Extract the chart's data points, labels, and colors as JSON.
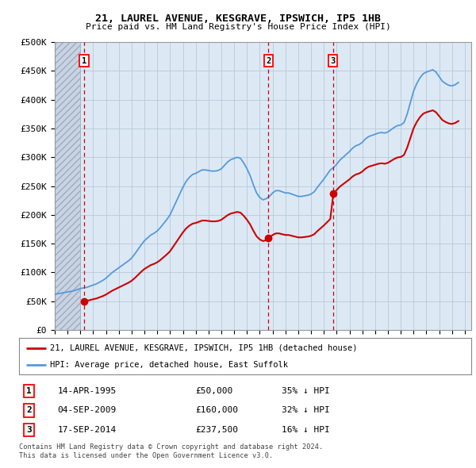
{
  "title1": "21, LAUREL AVENUE, KESGRAVE, IPSWICH, IP5 1HB",
  "title2": "Price paid vs. HM Land Registry's House Price Index (HPI)",
  "ylim": [
    0,
    500000
  ],
  "yticks": [
    0,
    50000,
    100000,
    150000,
    200000,
    250000,
    300000,
    350000,
    400000,
    450000,
    500000
  ],
  "ytick_labels": [
    "£0",
    "£50K",
    "£100K",
    "£150K",
    "£200K",
    "£250K",
    "£300K",
    "£350K",
    "£400K",
    "£450K",
    "£500K"
  ],
  "xlim_start": 1993.0,
  "xlim_end": 2025.5,
  "hatch_end": 1995.0,
  "transactions": [
    {
      "num": 1,
      "year": 1995.29,
      "price": 50000,
      "label": "14-APR-1995",
      "price_str": "£50,000",
      "hpi_str": "35% ↓ HPI"
    },
    {
      "num": 2,
      "year": 2009.68,
      "price": 160000,
      "label": "04-SEP-2009",
      "price_str": "£160,000",
      "hpi_str": "32% ↓ HPI"
    },
    {
      "num": 3,
      "year": 2014.71,
      "price": 237500,
      "label": "17-SEP-2014",
      "price_str": "£237,500",
      "hpi_str": "16% ↓ HPI"
    }
  ],
  "legend_red": "21, LAUREL AVENUE, KESGRAVE, IPSWICH, IP5 1HB (detached house)",
  "legend_blue": "HPI: Average price, detached house, East Suffolk",
  "footer1": "Contains HM Land Registry data © Crown copyright and database right 2024.",
  "footer2": "This data is licensed under the Open Government Licence v3.0.",
  "plot_bg": "#dce9f5",
  "hatch_color": "#c0c8d8",
  "grid_color": "#b8c8d8",
  "red_line_color": "#cc0000",
  "blue_line_color": "#5599dd",
  "dashed_line_color": "#cc0000",
  "hpi_data_x": [
    1993.0,
    1993.25,
    1993.5,
    1993.75,
    1994.0,
    1994.25,
    1994.5,
    1994.75,
    1995.0,
    1995.25,
    1995.5,
    1995.75,
    1996.0,
    1996.25,
    1996.5,
    1996.75,
    1997.0,
    1997.25,
    1997.5,
    1997.75,
    1998.0,
    1998.25,
    1998.5,
    1998.75,
    1999.0,
    1999.25,
    1999.5,
    1999.75,
    2000.0,
    2000.25,
    2000.5,
    2000.75,
    2001.0,
    2001.25,
    2001.5,
    2001.75,
    2002.0,
    2002.25,
    2002.5,
    2002.75,
    2003.0,
    2003.25,
    2003.5,
    2003.75,
    2004.0,
    2004.25,
    2004.5,
    2004.75,
    2005.0,
    2005.25,
    2005.5,
    2005.75,
    2006.0,
    2006.25,
    2006.5,
    2006.75,
    2007.0,
    2007.25,
    2007.5,
    2007.75,
    2008.0,
    2008.25,
    2008.5,
    2008.75,
    2009.0,
    2009.25,
    2009.5,
    2009.75,
    2010.0,
    2010.25,
    2010.5,
    2010.75,
    2011.0,
    2011.25,
    2011.5,
    2011.75,
    2012.0,
    2012.25,
    2012.5,
    2012.75,
    2013.0,
    2013.25,
    2013.5,
    2013.75,
    2014.0,
    2014.25,
    2014.5,
    2014.75,
    2015.0,
    2015.25,
    2015.5,
    2015.75,
    2016.0,
    2016.25,
    2016.5,
    2016.75,
    2017.0,
    2017.25,
    2017.5,
    2017.75,
    2018.0,
    2018.25,
    2018.5,
    2018.75,
    2019.0,
    2019.25,
    2019.5,
    2019.75,
    2020.0,
    2020.25,
    2020.5,
    2020.75,
    2021.0,
    2021.25,
    2021.5,
    2021.75,
    2022.0,
    2022.25,
    2022.5,
    2022.75,
    2023.0,
    2023.25,
    2023.5,
    2023.75,
    2024.0,
    2024.25,
    2024.5
  ],
  "hpi_data_y": [
    62000,
    63000,
    64000,
    65000,
    66000,
    67000,
    68000,
    70000,
    72000,
    73000,
    74000,
    76000,
    78000,
    80000,
    83000,
    86000,
    90000,
    95000,
    100000,
    104000,
    108000,
    112000,
    116000,
    120000,
    125000,
    132000,
    140000,
    148000,
    155000,
    160000,
    165000,
    168000,
    172000,
    178000,
    185000,
    192000,
    200000,
    212000,
    224000,
    236000,
    248000,
    258000,
    265000,
    270000,
    272000,
    275000,
    278000,
    278000,
    277000,
    276000,
    276000,
    277000,
    280000,
    286000,
    292000,
    296000,
    298000,
    300000,
    298000,
    290000,
    280000,
    268000,
    252000,
    238000,
    230000,
    226000,
    228000,
    232000,
    238000,
    242000,
    242000,
    240000,
    238000,
    238000,
    236000,
    234000,
    232000,
    232000,
    233000,
    234000,
    236000,
    240000,
    248000,
    255000,
    262000,
    270000,
    278000,
    282000,
    288000,
    295000,
    300000,
    305000,
    310000,
    316000,
    320000,
    322000,
    326000,
    332000,
    336000,
    338000,
    340000,
    342000,
    343000,
    342000,
    344000,
    348000,
    352000,
    355000,
    356000,
    360000,
    375000,
    395000,
    415000,
    428000,
    438000,
    445000,
    448000,
    450000,
    452000,
    448000,
    440000,
    432000,
    428000,
    425000,
    424000,
    426000,
    430000
  ],
  "sale_marker_color": "#cc0000"
}
